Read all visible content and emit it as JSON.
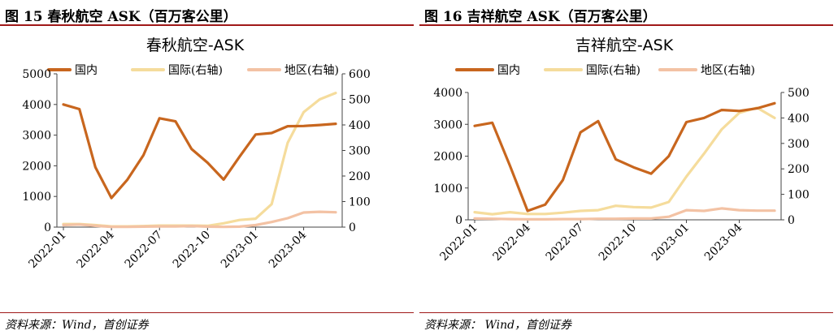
{
  "figures": [
    {
      "figure_title": "图  15  春秋航空 ASK（百万客公里）",
      "source": "资料来源：Wind，首创证券"
    },
    {
      "figure_title": "图  16  吉祥航空 ASK（百万客公里）",
      "source": "资料来源：  Wind，首创证券"
    }
  ],
  "chart_data": [
    {
      "type": "line",
      "title": "春秋航空-ASK",
      "x": [
        "2022-01",
        "2022-02",
        "2022-03",
        "2022-04",
        "2022-05",
        "2022-06",
        "2022-07",
        "2022-08",
        "2022-09",
        "2022-10",
        "2022-11",
        "2022-12",
        "2023-01",
        "2023-02",
        "2023-03",
        "2023-04",
        "2023-05",
        "2023-06"
      ],
      "xtick_labels": [
        "2022-01",
        "2022-04",
        "2022-07",
        "2022-10",
        "2023-01",
        "2023-04"
      ],
      "y_left": {
        "min": 0,
        "max": 5000,
        "ticks": [
          0,
          1000,
          2000,
          3000,
          4000,
          5000
        ]
      },
      "y_right": {
        "min": 0,
        "max": 600,
        "ticks": [
          0,
          100,
          200,
          300,
          400,
          500,
          600
        ]
      },
      "grid": false,
      "legend_position": "top",
      "series": [
        {
          "name": "国内",
          "axis": "left",
          "color": "#c8661e",
          "values": [
            4000,
            3850,
            1950,
            950,
            1550,
            2350,
            3550,
            3450,
            2550,
            2100,
            1550,
            2300,
            3020,
            3070,
            3290,
            3300,
            3330,
            3370
          ]
        },
        {
          "name": "国际(右轴)",
          "axis": "right",
          "color": "#f5dc9c",
          "values": [
            12,
            12,
            8,
            3,
            3,
            4,
            6,
            6,
            6,
            5,
            15,
            28,
            33,
            90,
            330,
            450,
            500,
            525
          ]
        },
        {
          "name": "地区(右轴)",
          "axis": "right",
          "color": "#f3c2a4",
          "values": [
            8,
            10,
            5,
            1,
            1,
            2,
            3,
            3,
            4,
            2,
            1,
            2,
            8,
            20,
            35,
            57,
            60,
            58
          ]
        }
      ]
    },
    {
      "type": "line",
      "title": "吉祥航空-ASK",
      "x": [
        "2022-01",
        "2022-02",
        "2022-03",
        "2022-04",
        "2022-05",
        "2022-06",
        "2022-07",
        "2022-08",
        "2022-09",
        "2022-10",
        "2022-11",
        "2022-12",
        "2023-01",
        "2023-02",
        "2023-03",
        "2023-04",
        "2023-05",
        "2023-06"
      ],
      "xtick_labels": [
        "2022-01",
        "2022-04",
        "2022-07",
        "2022-10",
        "2023-01",
        "2023-04"
      ],
      "y_left": {
        "min": 0,
        "max": 4000,
        "ticks": [
          0,
          1000,
          2000,
          3000,
          4000
        ]
      },
      "y_right": {
        "min": 0,
        "max": 500,
        "ticks": [
          0,
          100,
          200,
          300,
          400,
          500
        ]
      },
      "grid": false,
      "legend_position": "top",
      "series": [
        {
          "name": "国内",
          "axis": "left",
          "color": "#c8661e",
          "values": [
            2950,
            3050,
            1700,
            280,
            480,
            1250,
            2750,
            3100,
            1900,
            1650,
            1450,
            2000,
            3070,
            3200,
            3450,
            3420,
            3500,
            3660
          ]
        },
        {
          "name": "国际(右轴)",
          "axis": "right",
          "color": "#f5dc9c",
          "values": [
            30,
            22,
            30,
            23,
            23,
            28,
            35,
            38,
            55,
            50,
            48,
            70,
            170,
            260,
            355,
            420,
            440,
            400
          ]
        },
        {
          "name": "地区(右轴)",
          "axis": "right",
          "color": "#f3c2a4",
          "values": [
            5,
            4,
            3,
            2,
            2,
            3,
            3,
            4,
            4,
            5,
            5,
            12,
            38,
            35,
            45,
            38,
            36,
            36
          ]
        }
      ]
    }
  ]
}
